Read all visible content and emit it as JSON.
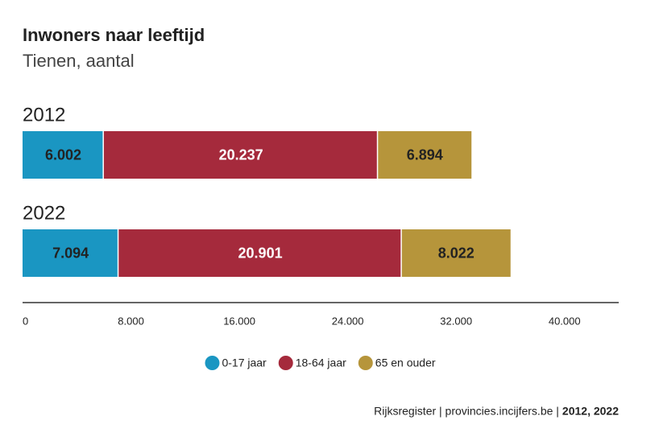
{
  "chart_data": {
    "type": "stacked-bar-horizontal",
    "title": "Inwoners naar leeftijd",
    "subtitle": "Tienen, aantal",
    "categories": [
      "2012",
      "2022"
    ],
    "series": [
      {
        "name": "0-17 jaar",
        "color": "#1a96c2",
        "label_color": "#222222",
        "values": [
          6002,
          7094
        ],
        "value_labels": [
          "6.002",
          "7.094"
        ]
      },
      {
        "name": "18-64 jaar",
        "color": "#a52a3c",
        "label_color": "#ffffff",
        "values": [
          20237,
          20901
        ],
        "value_labels": [
          "20.237",
          "20.901"
        ]
      },
      {
        "name": "65 en ouder",
        "color": "#b6953b",
        "label_color": "#222222",
        "values": [
          6894,
          8022
        ],
        "value_labels": [
          "6.894",
          "8.022"
        ]
      }
    ],
    "xlim": [
      0,
      44000
    ],
    "xticks": [
      0,
      {
        "value": 8000,
        "label": "8.000"
      },
      {
        "value": 16000,
        "label": "16.000"
      },
      {
        "value": 24000,
        "label": "24.000"
      },
      {
        "value": 32000,
        "label": "32.000"
      },
      {
        "value": 40000,
        "label": "40.000"
      }
    ],
    "source": "Rijksregister | provincies.incijfers.be |",
    "source_years": "2012, 2022"
  }
}
